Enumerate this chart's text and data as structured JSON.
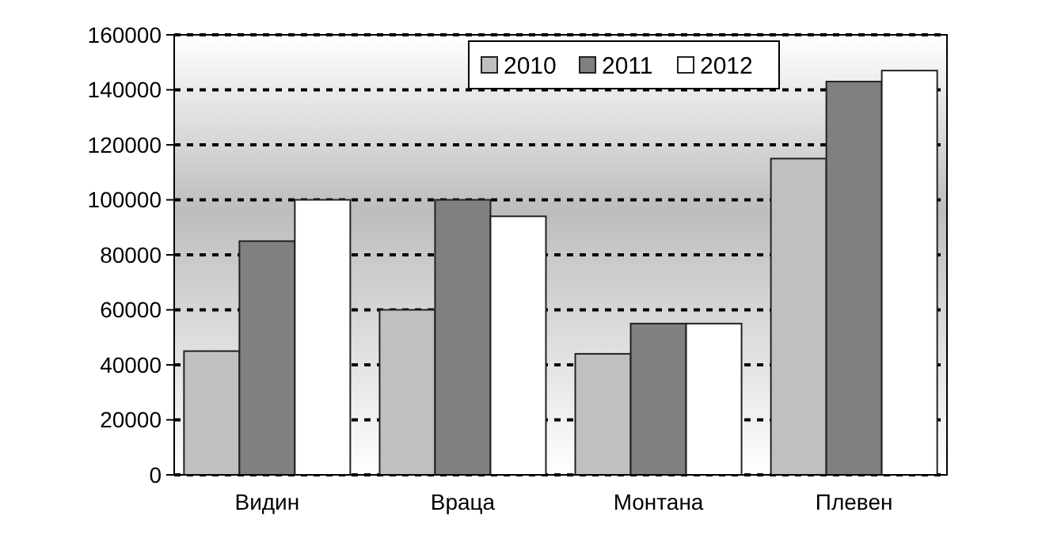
{
  "chart_data": {
    "type": "bar",
    "categories": [
      "Видин",
      "Враца",
      "Монтана",
      "Плевен"
    ],
    "series": [
      {
        "name": "2010",
        "color": "#c0c0c0",
        "values": [
          45000,
          60000,
          44000,
          115000
        ]
      },
      {
        "name": "2011",
        "color": "#808080",
        "values": [
          85000,
          100000,
          55000,
          143000
        ]
      },
      {
        "name": "2012",
        "color": "#ffffff",
        "values": [
          100000,
          94000,
          55000,
          147000
        ]
      }
    ],
    "ylim": [
      0,
      160000
    ],
    "yticks": [
      0,
      20000,
      40000,
      60000,
      80000,
      100000,
      120000,
      140000,
      160000
    ],
    "grid": "y",
    "line_style": "dashed",
    "legend": "top"
  }
}
